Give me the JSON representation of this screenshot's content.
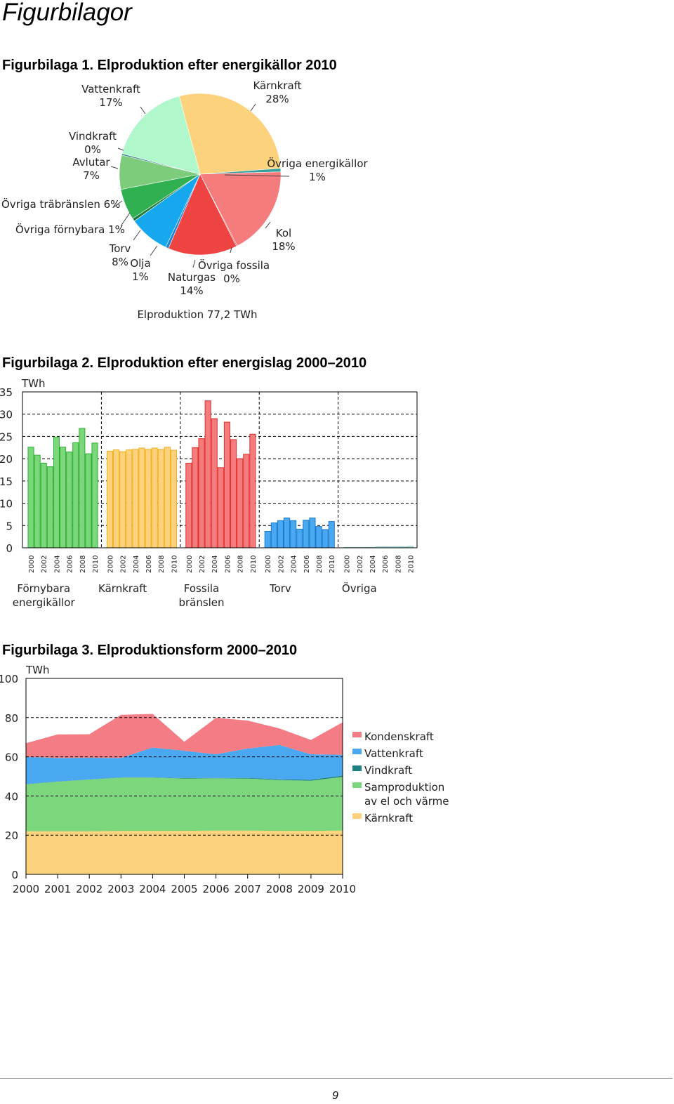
{
  "page": {
    "title": "Figurbilagor",
    "page_number": "9"
  },
  "figures": {
    "fig1": {
      "heading": "Figurbilaga 1. Elproduktion efter energikällor 2010",
      "caption": "Elproduktion 77,2 TWh"
    },
    "fig2": {
      "heading": "Figurbilaga 2. Elproduktion efter energislag 2000–2010",
      "unit": "TWh"
    },
    "fig3": {
      "heading": "Figurbilaga 3. Elproduktionsform 2000–2010",
      "unit": "TWh"
    }
  },
  "chart_data": [
    {
      "type": "pie",
      "title": "Elproduktion 77,2 TWh",
      "slices": [
        {
          "label": "Kärnkraft",
          "value_text": "28%",
          "value": 28.3,
          "color": "#fcd27c"
        },
        {
          "label": "Övriga energikällor",
          "value_text": "1%",
          "value": 0.7,
          "color": "#33a0a0"
        },
        {
          "label": "Kol",
          "value_text": "18%",
          "value": 18.0,
          "color": "#f57c7c"
        },
        {
          "label": "Övriga fossila",
          "value_text": "0%",
          "value": 0.2,
          "color": "#e83c3c"
        },
        {
          "label": "Naturgas",
          "value_text": "14%",
          "value": 14.0,
          "color": "#ef4444"
        },
        {
          "label": "Olja",
          "value_text": "1%",
          "value": 0.6,
          "color": "#1f84d4"
        },
        {
          "label": "Torv",
          "value_text": "8%",
          "value": 8.2,
          "color": "#16a8ee"
        },
        {
          "label": "Övriga förnybara",
          "value_text": "1%",
          "value": 0.6,
          "color": "#1e7a3a"
        },
        {
          "label": "Övriga träbränslen",
          "value_text": "6%",
          "value": 6.3,
          "color": "#30b050"
        },
        {
          "label": "Avlutar",
          "value_text": "7%",
          "value": 6.9,
          "color": "#7ccc7c"
        },
        {
          "label": "Vindkraft",
          "value_text": "0%",
          "value": 0.3,
          "color": "#2a8080"
        },
        {
          "label": "Vattenkraft",
          "value_text": "17%",
          "value": 16.9,
          "color": "#b0f8cc"
        }
      ]
    },
    {
      "type": "bar",
      "ylabel": "TWh",
      "ylim": [
        0,
        35
      ],
      "yticks": [
        0,
        5,
        10,
        15,
        20,
        25,
        30,
        35
      ],
      "grid": true,
      "tick_years": [
        "2000",
        "2002",
        "2004",
        "2006",
        "2008",
        "2010"
      ],
      "groups": [
        {
          "name": "Förnybara energikällor",
          "label_lines": [
            "Förnybara",
            "energikällor"
          ],
          "fill": "#7cd67c",
          "stroke": "#2eb02e",
          "years": [
            "2000",
            "2001",
            "2002",
            "2003",
            "2004",
            "2005",
            "2006",
            "2007",
            "2008",
            "2009",
            "2010"
          ],
          "values": [
            22.6,
            20.8,
            19.0,
            18.2,
            24.8,
            22.6,
            21.5,
            23.6,
            26.8,
            21.1,
            23.5
          ]
        },
        {
          "name": "Kärnkraft",
          "label_lines": [
            "Kärnkraft"
          ],
          "fill": "#fcd27c",
          "stroke": "#f0b020",
          "years": [
            "2000",
            "2001",
            "2002",
            "2003",
            "2004",
            "2005",
            "2006",
            "2007",
            "2008",
            "2009",
            "2010"
          ],
          "values": [
            21.7,
            22.0,
            21.6,
            22.0,
            22.1,
            22.4,
            22.1,
            22.4,
            22.1,
            22.6,
            21.9
          ]
        },
        {
          "name": "Fossila bränslen",
          "label_lines": [
            "Fossila",
            "bränslen"
          ],
          "fill": "#f57c7c",
          "stroke": "#e03030",
          "years": [
            "2000",
            "2001",
            "2002",
            "2003",
            "2004",
            "2005",
            "2006",
            "2007",
            "2008",
            "2009",
            "2010"
          ],
          "values": [
            19.0,
            22.5,
            24.5,
            33.0,
            29.0,
            18.0,
            28.2,
            24.3,
            20.0,
            21.0,
            25.5
          ]
        },
        {
          "name": "Torv",
          "label_lines": [
            "Torv"
          ],
          "fill": "#4aa8f0",
          "stroke": "#1a7ad0",
          "years": [
            "2000",
            "2001",
            "2002",
            "2003",
            "2004",
            "2005",
            "2006",
            "2007",
            "2008",
            "2009",
            "2010"
          ],
          "values": [
            3.7,
            5.6,
            6.1,
            6.7,
            6.1,
            4.2,
            6.2,
            6.7,
            4.8,
            4.1,
            5.9
          ]
        },
        {
          "name": "Övriga",
          "label_lines": [
            "Övriga"
          ],
          "fill": "#bde8e8",
          "stroke": "#8ccccc",
          "years": [
            "2000",
            "2001",
            "2002",
            "2003",
            "2004",
            "2005",
            "2006",
            "2007",
            "2008",
            "2009",
            "2010"
          ],
          "values": [
            0.1,
            0.1,
            0.1,
            0.1,
            0.1,
            0.2,
            0.2,
            0.2,
            0.2,
            0.2,
            0.3
          ]
        }
      ]
    },
    {
      "type": "area",
      "stacked": true,
      "ylabel": "TWh",
      "ylim": [
        0,
        100
      ],
      "yticks": [
        0,
        20,
        40,
        60,
        80,
        100
      ],
      "grid": true,
      "legend_position": "right",
      "x": [
        "2000",
        "2001",
        "2002",
        "2003",
        "2004",
        "2005",
        "2006",
        "2007",
        "2008",
        "2009",
        "2010"
      ],
      "series": [
        {
          "name": "Kärnkraft",
          "color": "#fcd27c",
          "values": [
            22.0,
            22.0,
            22.0,
            22.2,
            22.2,
            22.2,
            22.3,
            22.3,
            22.2,
            22.2,
            22.3
          ]
        },
        {
          "name": "Samproduktion av el och värme",
          "label_lines": [
            "Samproduktion",
            "av el och värme"
          ],
          "color": "#7cd67c",
          "values": [
            24.0,
            25.3,
            26.4,
            27.2,
            27.2,
            26.7,
            26.7,
            26.6,
            25.9,
            25.6,
            27.5
          ]
        },
        {
          "name": "Vindkraft",
          "color": "#1e8080",
          "values": [
            0.1,
            0.1,
            0.1,
            0.1,
            0.1,
            0.2,
            0.2,
            0.3,
            0.4,
            0.5,
            0.6
          ]
        },
        {
          "name": "Vattenkraft",
          "color": "#4aa8f0",
          "values": [
            13.8,
            12.0,
            11.0,
            9.9,
            15.2,
            14.0,
            12.1,
            15.0,
            17.5,
            13.0,
            10.6
          ]
        },
        {
          "name": "Kondenskraft",
          "color": "#f47c84",
          "values": [
            7.0,
            12.0,
            12.0,
            22.0,
            17.2,
            4.6,
            18.6,
            14.3,
            8.5,
            7.3,
            16.6
          ]
        }
      ]
    }
  ]
}
